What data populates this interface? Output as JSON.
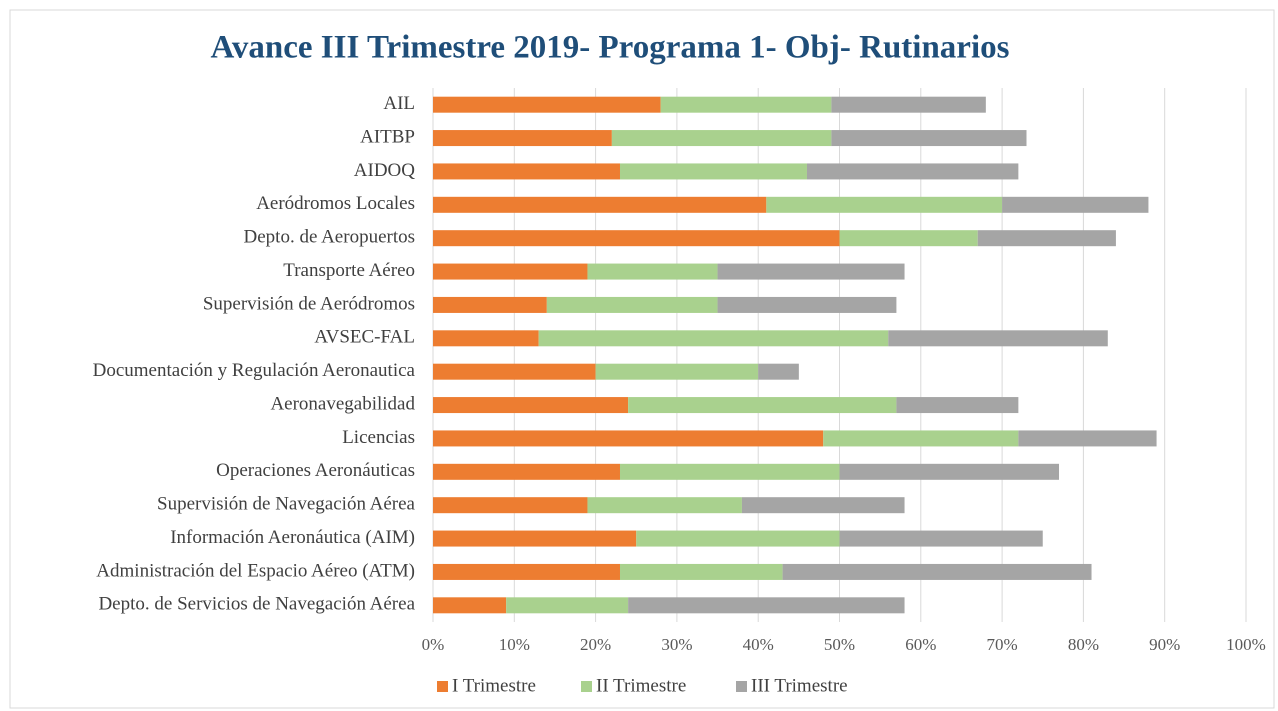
{
  "chart_data": {
    "type": "stacked_bar_horizontal",
    "title": "Avance III Trimestre 2019- Programa 1- Obj- Rutinarios",
    "categories": [
      "AIL",
      "AITBP",
      "AIDOQ",
      "Aeródromos Locales",
      "Depto. de Aeropuertos",
      "Transporte Aéreo",
      "Supervisión de Aeródromos",
      "AVSEC-FAL",
      "Documentación y Regulación Aeronautica",
      "Aeronavegabilidad",
      "Licencias",
      "Operaciones Aeronáuticas",
      "Supervisión de Navegación Aérea",
      "Información Aeronáutica (AIM)",
      "Administración del Espacio Aéreo (ATM)",
      "Depto. de Servicios de Navegación Aérea"
    ],
    "series": [
      {
        "name": "I Trimestre",
        "color": "#ed7d31",
        "values": [
          28,
          22,
          23,
          41,
          50,
          19,
          14,
          13,
          20,
          24,
          48,
          23,
          19,
          25,
          23,
          9
        ]
      },
      {
        "name": "II Trimestre",
        "color": "#a9d18e",
        "values": [
          21,
          27,
          23,
          29,
          17,
          16,
          21,
          43,
          20,
          33,
          24,
          27,
          19,
          25,
          20,
          15
        ]
      },
      {
        "name": "III Trimestre",
        "color": "#a5a5a5",
        "values": [
          19,
          24,
          26,
          18,
          17,
          23,
          22,
          27,
          5,
          15,
          17,
          27,
          20,
          25,
          38,
          34
        ]
      }
    ],
    "xlim": [
      0,
      100
    ],
    "xticks": [
      {
        "value": 0,
        "label": "0%"
      },
      {
        "value": 10,
        "label": "10%"
      },
      {
        "value": 20,
        "label": "20%"
      },
      {
        "value": 30,
        "label": "30%"
      },
      {
        "value": 40,
        "label": "40%"
      },
      {
        "value": 50,
        "label": "50%"
      },
      {
        "value": 60,
        "label": "60%"
      },
      {
        "value": 70,
        "label": "70%"
      },
      {
        "value": 80,
        "label": "80%"
      },
      {
        "value": 90,
        "label": "90%"
      },
      {
        "value": 100,
        "label": "100%"
      }
    ],
    "grid": true,
    "legend": "bottom"
  }
}
